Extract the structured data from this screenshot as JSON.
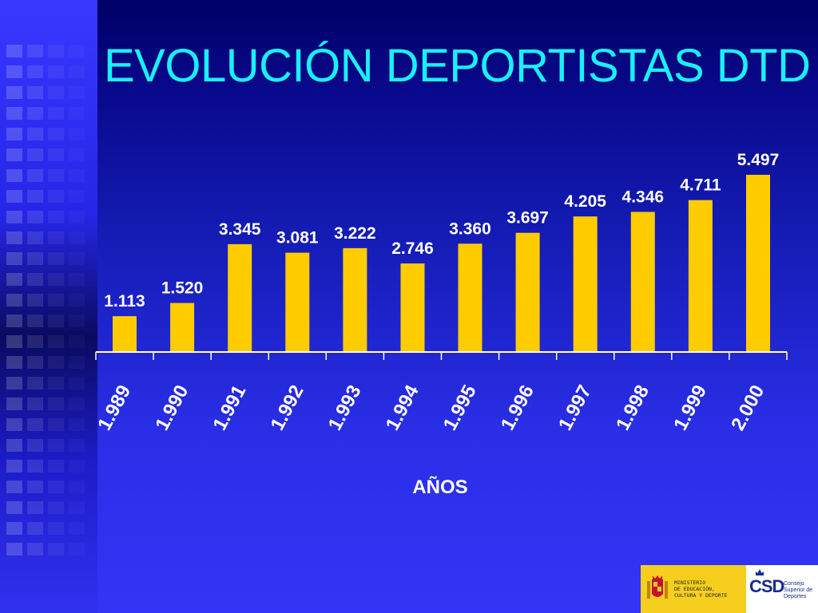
{
  "title": "EVOLUCIÓN DEPORTISTAS DTD",
  "colors": {
    "background": "#2a2ee6",
    "title": "#19f0ff",
    "bar": "#ffcc00",
    "text": "#ffffff",
    "axis": "#ffffff"
  },
  "chart_data": {
    "type": "bar",
    "title": "EVOLUCIÓN DEPORTISTAS DTD",
    "xlabel": "AÑOS",
    "ylabel": "",
    "categories": [
      "1.989",
      "1.990",
      "1.991",
      "1.992",
      "1.993",
      "1.994",
      "1.995",
      "1.996",
      "1.997",
      "1.998",
      "1.999",
      "2.000"
    ],
    "values": [
      1113,
      1520,
      3345,
      3081,
      3222,
      2746,
      3360,
      3697,
      4205,
      4346,
      4711,
      5497
    ],
    "value_labels": [
      "1.113",
      "1.520",
      "3.345",
      "3.081",
      "3.222",
      "2.746",
      "3.360",
      "3.697",
      "4.205",
      "4.346",
      "4.711",
      "5.497"
    ],
    "ylim": [
      0,
      5497
    ],
    "grid": false,
    "legend": "none",
    "y_axis_visible": false,
    "tick_label_rotation": "diagonal"
  },
  "logo": {
    "ministerio_text": "MINISTERIO\nDE EDUCACIÓN,\nCULTURA Y DEPORTE",
    "csd_mark": "CSD",
    "csd_text": "Consejo\nSuperior de\nDeportes"
  }
}
